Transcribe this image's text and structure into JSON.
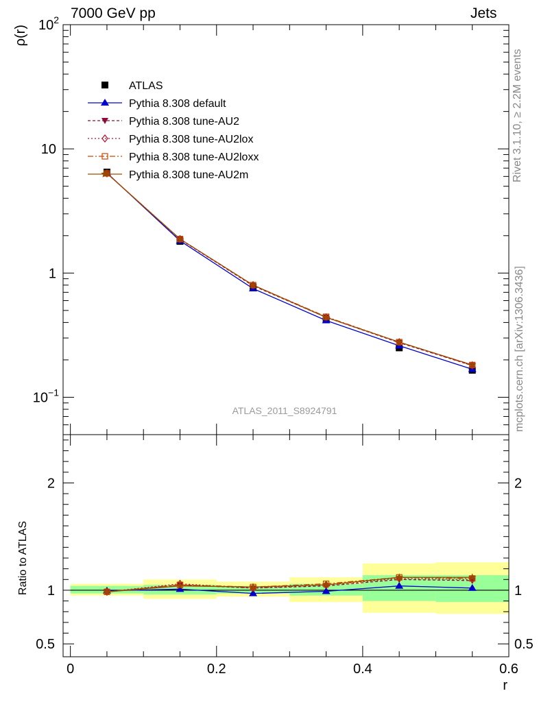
{
  "header": {
    "left": "7000 GeV pp",
    "right": "Jets"
  },
  "side_labels": {
    "rivet": "Rivet 3.1.10, ≥ 2.2M events",
    "mcplots": "mcplots.cern.ch [arXiv:1306.3436]"
  },
  "analysis_tag": "ATLAS_2011_S8924791",
  "legend": [
    {
      "label": "ATLAS",
      "marker": "square-filled",
      "color": "#000000",
      "dash": "none"
    },
    {
      "label": "Pythia 8.308 default",
      "marker": "triangle-up-filled",
      "color": "#0000cc",
      "dash": "solid"
    },
    {
      "label": "Pythia 8.308 tune-AU2",
      "marker": "triangle-down-filled",
      "color": "#8b0a3a",
      "dash": "4,3"
    },
    {
      "label": "Pythia 8.308 tune-AU2lox",
      "marker": "diamond-open",
      "color": "#b01030",
      "dash": "2,3"
    },
    {
      "label": "Pythia 8.308 tune-AU2loxx",
      "marker": "square-open",
      "color": "#cc4400",
      "dash": "8,3,2,3"
    },
    {
      "label": "Pythia 8.308 tune-AU2m",
      "marker": "star",
      "color": "#9a4a00",
      "dash": "solid"
    }
  ],
  "chart_data": [
    {
      "type": "line",
      "panel": "main",
      "ylabel": "ρ(r)",
      "yscale": "log",
      "ylim": [
        0.05,
        100
      ],
      "xlim": [
        -0.01,
        0.6
      ],
      "yticks": [
        {
          "value": 100,
          "label": "10",
          "sup": "2"
        },
        {
          "value": 10,
          "label": "10",
          "sup": ""
        },
        {
          "value": 1,
          "label": "1",
          "sup": ""
        },
        {
          "value": 0.1,
          "label": "10",
          "sup": "−1"
        }
      ],
      "x": [
        0.05,
        0.15,
        0.25,
        0.35,
        0.45,
        0.55
      ],
      "series": [
        {
          "name": "ATLAS",
          "values": [
            6.5,
            1.8,
            0.77,
            0.42,
            0.25,
            0.165
          ]
        },
        {
          "name": "Pythia 8.308 default",
          "values": [
            6.4,
            1.82,
            0.75,
            0.415,
            0.26,
            0.168
          ]
        },
        {
          "name": "Pythia 8.308 tune-AU2",
          "values": [
            6.35,
            1.87,
            0.79,
            0.44,
            0.275,
            0.18
          ]
        },
        {
          "name": "Pythia 8.308 tune-AU2lox",
          "values": [
            6.35,
            1.88,
            0.8,
            0.44,
            0.278,
            0.18
          ]
        },
        {
          "name": "Pythia 8.308 tune-AU2loxx",
          "values": [
            6.35,
            1.88,
            0.8,
            0.445,
            0.278,
            0.182
          ]
        },
        {
          "name": "Pythia 8.308 tune-AU2m",
          "values": [
            6.35,
            1.88,
            0.8,
            0.44,
            0.278,
            0.182
          ]
        }
      ]
    },
    {
      "type": "line",
      "panel": "ratio",
      "ylabel": "Ratio to ATLAS",
      "xlabel": "r",
      "ylim": [
        0.38,
        2.45
      ],
      "xlim": [
        -0.01,
        0.6
      ],
      "xticks": [
        "0",
        "0.2",
        "0.4",
        "0.6"
      ],
      "yticks": [
        "0.5",
        "1",
        "2"
      ],
      "x": [
        0.05,
        0.15,
        0.25,
        0.35,
        0.45,
        0.55
      ],
      "bins": [
        [
          0,
          0.1
        ],
        [
          0.1,
          0.2
        ],
        [
          0.2,
          0.3
        ],
        [
          0.3,
          0.4
        ],
        [
          0.4,
          0.5
        ],
        [
          0.5,
          0.6
        ]
      ],
      "band_stat": [
        [
          0.97,
          1.04
        ],
        [
          0.96,
          1.05
        ],
        [
          0.97,
          1.04
        ],
        [
          0.95,
          1.06
        ],
        [
          0.9,
          1.14
        ],
        [
          0.89,
          1.14
        ]
      ],
      "band_total": [
        [
          0.95,
          1.06
        ],
        [
          0.92,
          1.1
        ],
        [
          0.94,
          1.08
        ],
        [
          0.89,
          1.12
        ],
        [
          0.79,
          1.25
        ],
        [
          0.78,
          1.26
        ]
      ],
      "series": [
        {
          "name": "Pythia 8.308 default",
          "values": [
            0.995,
            1.01,
            0.97,
            0.99,
            1.04,
            1.02
          ]
        },
        {
          "name": "Pythia 8.308 tune-AU2",
          "values": [
            0.985,
            1.05,
            1.02,
            1.04,
            1.1,
            1.09
          ]
        },
        {
          "name": "Pythia 8.308 tune-AU2lox",
          "values": [
            0.985,
            1.06,
            1.02,
            1.05,
            1.11,
            1.1
          ]
        },
        {
          "name": "Pythia 8.308 tune-AU2loxx",
          "values": [
            0.985,
            1.05,
            1.03,
            1.06,
            1.12,
            1.11
          ]
        },
        {
          "name": "Pythia 8.308 tune-AU2m",
          "values": [
            0.985,
            1.04,
            1.03,
            1.05,
            1.12,
            1.12
          ]
        }
      ]
    }
  ]
}
